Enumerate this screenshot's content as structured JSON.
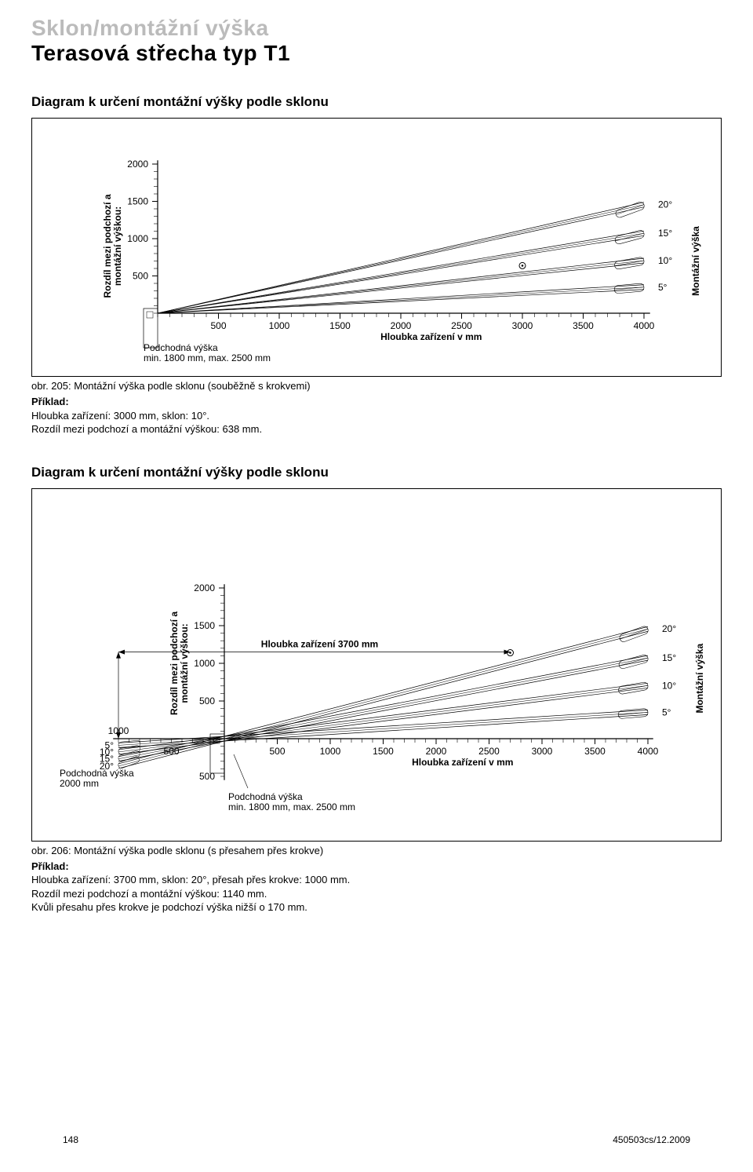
{
  "header": {
    "line1": "Sklon/montážní výška",
    "line2": "Terasová střecha typ T1"
  },
  "section1_title": "Diagram k určení montážní výšky podle sklonu",
  "section2_title": "Diagram k určení montážní výšky podle sklonu",
  "chart1": {
    "y_axis_label": "Rozdíl mezi podchozí a\nmontážní výškou:",
    "right_axis_label": "Montážní výška",
    "x_axis_label": "Hloubka zařízení v mm",
    "y_ticks": [
      500,
      1000,
      1500,
      2000
    ],
    "x_ticks": [
      500,
      1000,
      1500,
      2000,
      2500,
      3000,
      3500,
      4000
    ],
    "angle_labels": [
      "5°",
      "10°",
      "15°",
      "20°"
    ],
    "pod_label": "Podchodná výška\nmin. 1800 mm, max. 2500 mm",
    "side_code": "kd050950080_2",
    "dot_x": 3000,
    "dot_y": 638,
    "colors": {
      "line": "#000",
      "grid": "#000",
      "bg": "#fff"
    },
    "ylim": [
      0,
      2000
    ],
    "xlim": [
      0,
      4000
    ]
  },
  "caption1_label": "obr. 205:",
  "caption1_text": "Montážní výška podle sklonu (souběžně s krokvemi)",
  "example1": {
    "lead": "Příklad:",
    "l1": "Hloubka zařízení: 3000 mm, sklon: 10°.",
    "l2": "Rozdíl mezi podchozí a montážní výškou: 638 mm."
  },
  "chart2": {
    "y_axis_label": "Rozdíl mezi podchozí a\nmontážní výškou:",
    "right_axis_label": "Montážní výška",
    "x_axis_label": "Hloubka zařízení v mm",
    "y_ticks": [
      500,
      1000,
      1500,
      2000
    ],
    "y_neg_tick": 500,
    "x_ticks": [
      500,
      1000,
      1500,
      2000,
      2500,
      3000,
      3500,
      4000
    ],
    "left_x_tick": 500,
    "left_x_neg": 1000,
    "left_angle_labels": [
      "5°",
      "10°",
      "15°",
      "20°"
    ],
    "right_angle_labels": [
      "5°",
      "10°",
      "15°",
      "20°"
    ],
    "pod_label_left": "Podchodná výška\n2000 mm",
    "pod_label_center": "Podchodná výška\nmin. 1800 mm, max. 2500 mm",
    "depth_callout": "Hloubka zařízení 3700 mm",
    "side_code": "kd050950080_1",
    "dot_x": 2700,
    "dot_y": 1140,
    "colors": {
      "line": "#000",
      "grid": "#000",
      "bg": "#fff"
    },
    "ylim": [
      -500,
      2000
    ],
    "xlim": [
      -1000,
      4000
    ]
  },
  "caption2_label": "obr. 206:",
  "caption2_text": "Montážní výška podle sklonu (s přesahem přes krokve)",
  "example2": {
    "lead": "Příklad:",
    "l1": "Hloubka zařízení: 3700 mm, sklon: 20°, přesah přes krokve: 1000 mm.",
    "l2": "Rozdíl mezi podchozí a montážní výškou: 1140 mm.",
    "l3": "Kvůli přesahu přes krokve je podchozí výška nižší o 170 mm."
  },
  "footer": {
    "page": "148",
    "doc": "450503cs/12.2009"
  }
}
